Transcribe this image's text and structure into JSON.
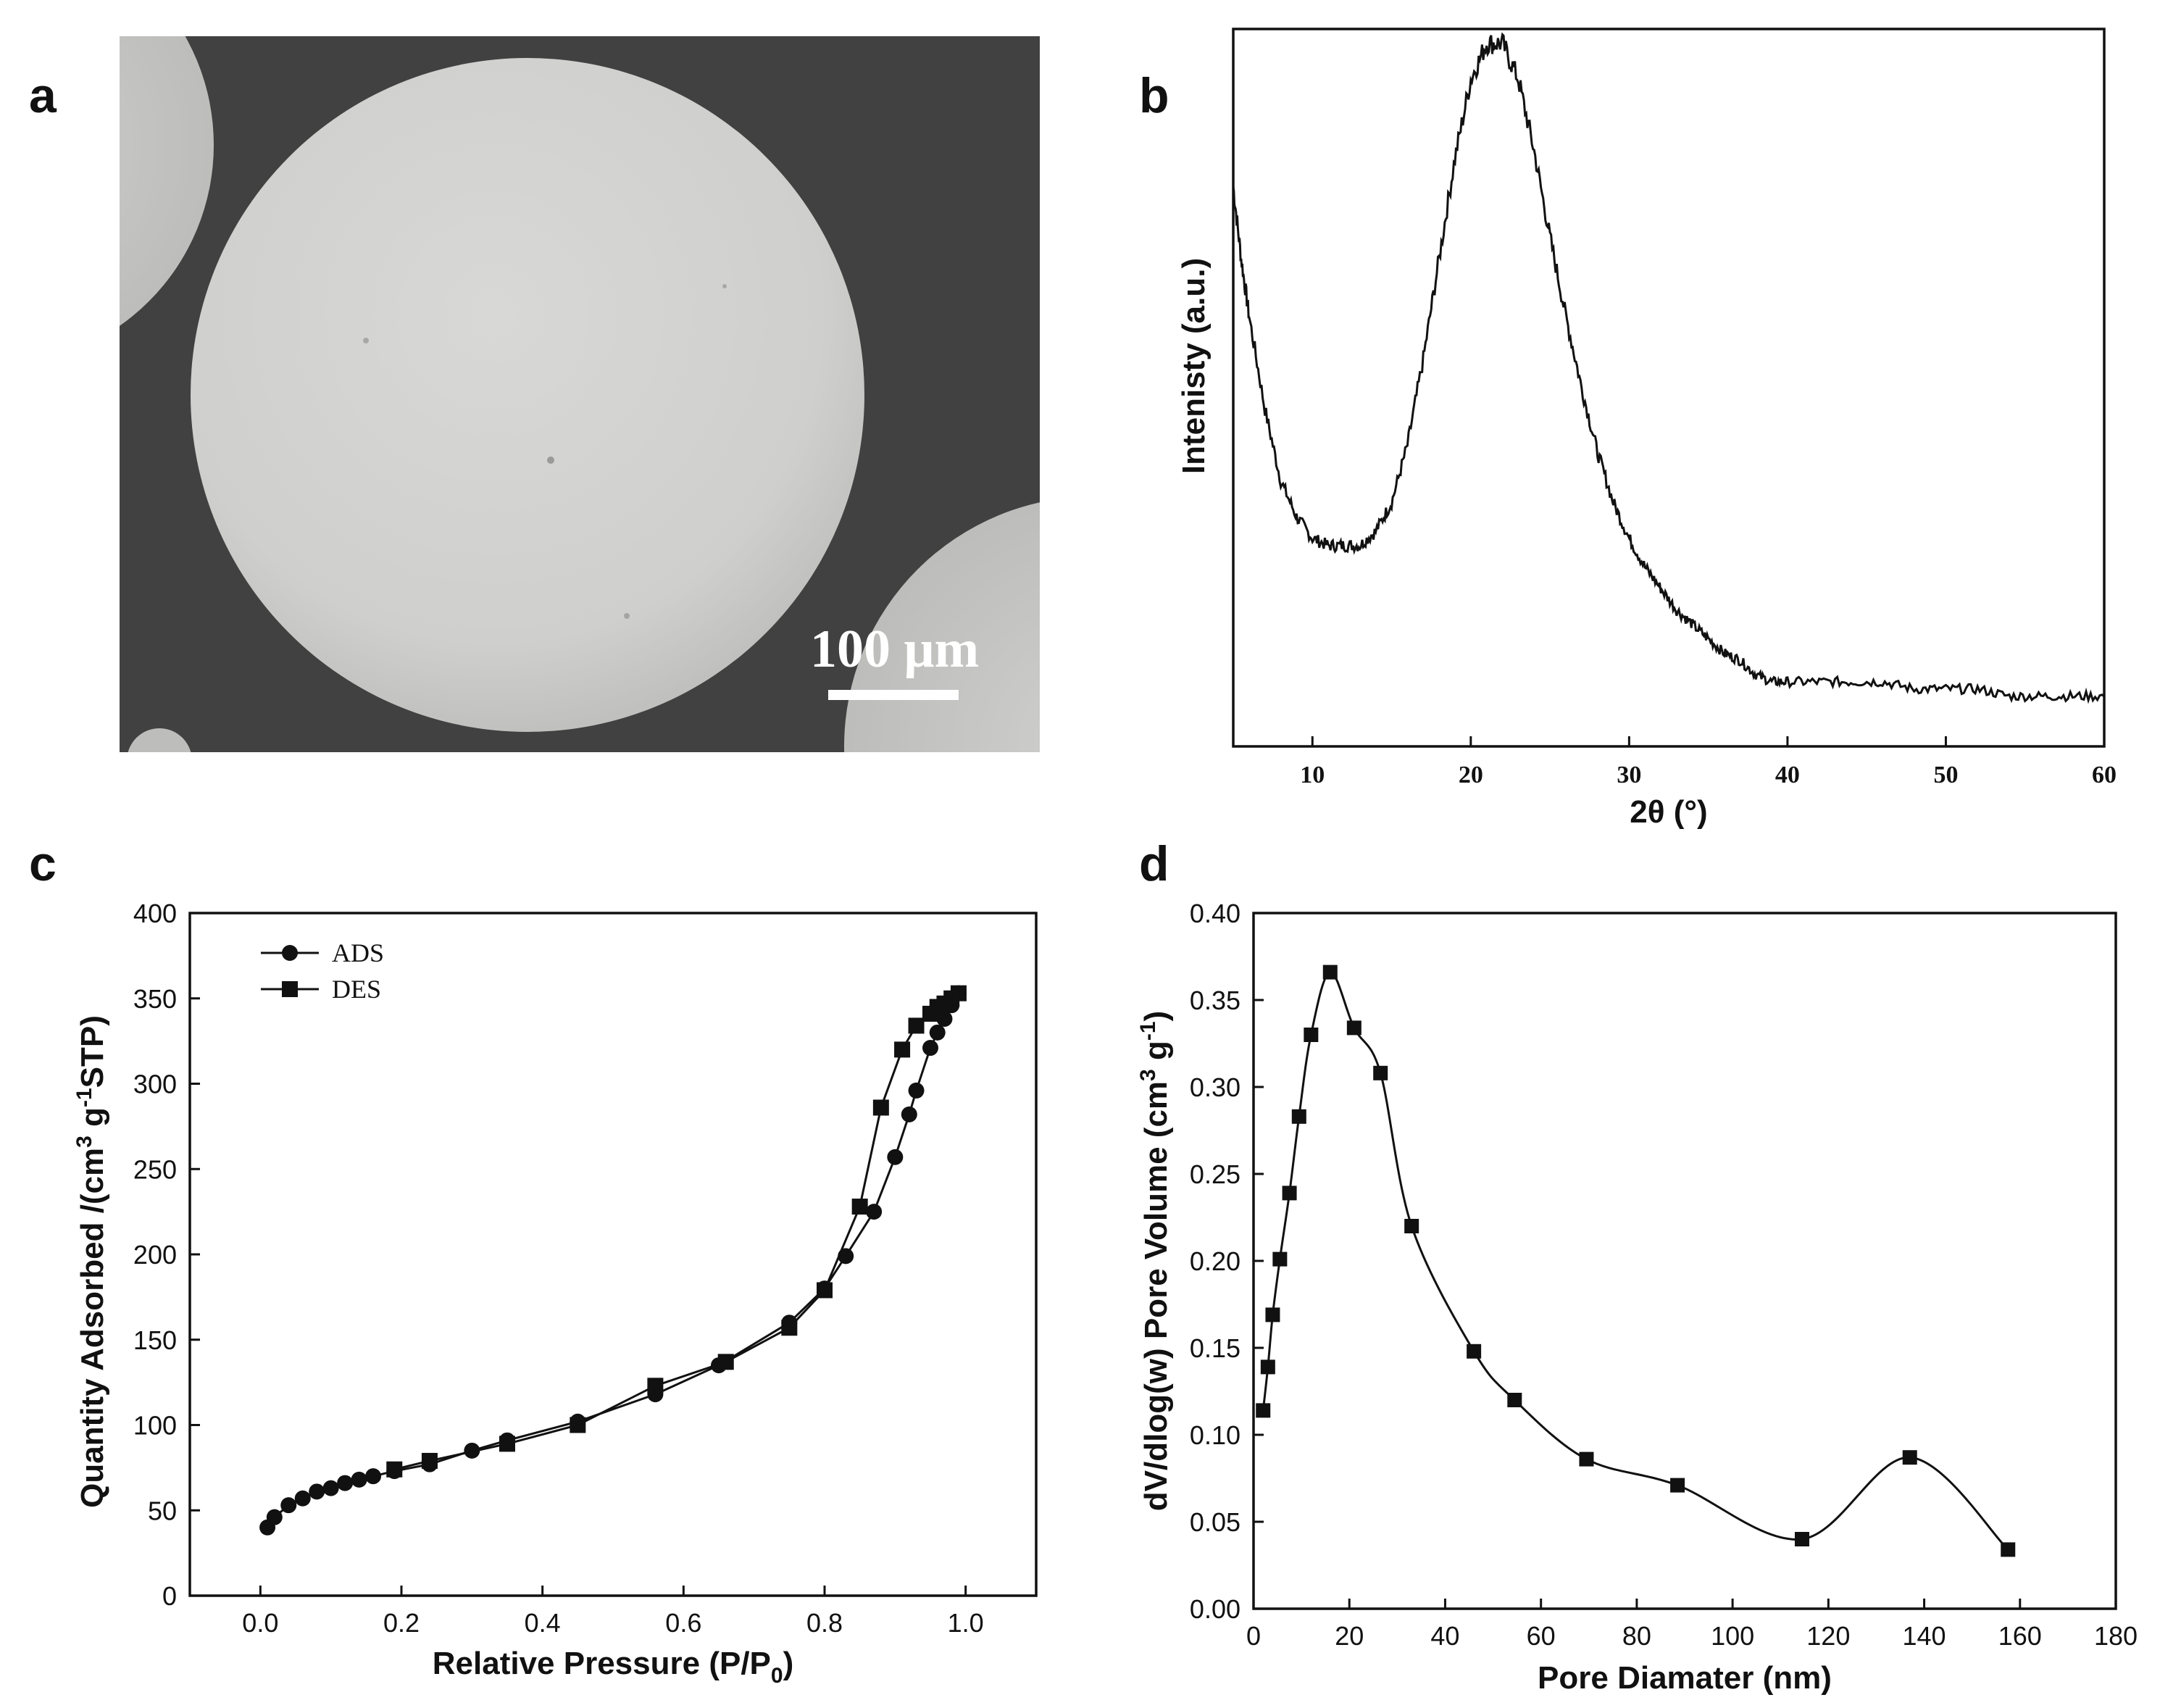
{
  "panel_labels": {
    "a": "a",
    "b": "b",
    "c": "c",
    "d": "d"
  },
  "sem": {
    "scale_bar_label": "100 μm",
    "colors": {
      "background": "#404040",
      "sphere": "#d2d2d0",
      "scale_bar": "#ffffff"
    }
  },
  "chart_data": [
    {
      "id": "b",
      "type": "line",
      "title": "",
      "xlabel": "2θ (°)",
      "ylabel": "Intenisty (a.u.)",
      "xlim": [
        5,
        60
      ],
      "ylim": [
        0,
        1
      ],
      "xticks": [
        10,
        20,
        30,
        40,
        50,
        60
      ],
      "x": [
        5,
        5.5,
        6,
        7,
        8,
        9,
        10,
        11,
        12,
        13,
        14,
        15,
        16,
        17,
        18,
        19,
        20,
        21,
        22,
        23,
        24,
        25,
        26,
        27,
        28,
        29,
        30,
        31,
        32,
        33,
        34,
        35,
        36,
        37,
        38,
        39,
        40,
        42,
        44,
        46,
        48,
        50,
        52,
        54,
        56,
        58,
        60
      ],
      "y": [
        0.78,
        0.68,
        0.6,
        0.47,
        0.37,
        0.32,
        0.29,
        0.28,
        0.28,
        0.28,
        0.3,
        0.34,
        0.42,
        0.54,
        0.68,
        0.82,
        0.93,
        0.98,
        0.98,
        0.93,
        0.83,
        0.71,
        0.6,
        0.5,
        0.41,
        0.34,
        0.29,
        0.25,
        0.22,
        0.19,
        0.17,
        0.15,
        0.13,
        0.12,
        0.1,
        0.09,
        0.09,
        0.09,
        0.09,
        0.09,
        0.08,
        0.08,
        0.08,
        0.07,
        0.07,
        0.07,
        0.07
      ]
    },
    {
      "id": "c",
      "type": "line",
      "title": "",
      "xlabel": "Relative Pressure (P/P0)",
      "ylabel": "Quantity Adsorbed /(cm3 g-1STP)",
      "xlim": [
        -0.1,
        1.1
      ],
      "ylim": [
        0,
        400
      ],
      "xticks": [
        0.0,
        0.2,
        0.4,
        0.6,
        0.8,
        1.0
      ],
      "yticks": [
        0,
        50,
        100,
        150,
        200,
        250,
        300,
        350,
        400
      ],
      "xtick_labels": [
        "0.0",
        "0.2",
        "0.4",
        "0.6",
        "0.8",
        "1.0"
      ],
      "series": [
        {
          "name": "ADS",
          "marker": "circle",
          "x": [
            0.01,
            0.02,
            0.04,
            0.06,
            0.08,
            0.1,
            0.12,
            0.14,
            0.16,
            0.19,
            0.24,
            0.3,
            0.35,
            0.45,
            0.56,
            0.65,
            0.75,
            0.8,
            0.83,
            0.87,
            0.9,
            0.92,
            0.93,
            0.95,
            0.96,
            0.97,
            0.98,
            0.99
          ],
          "y": [
            40,
            46,
            53,
            57,
            61,
            63,
            66,
            68,
            70,
            73,
            77,
            85,
            91,
            102,
            118,
            135,
            160,
            180,
            199,
            225,
            257,
            282,
            296,
            321,
            330,
            338,
            346,
            353
          ]
        },
        {
          "name": "DES",
          "marker": "square",
          "x": [
            0.99,
            0.98,
            0.97,
            0.96,
            0.95,
            0.93,
            0.91,
            0.88,
            0.85,
            0.8,
            0.75,
            0.66,
            0.56,
            0.45,
            0.35,
            0.24,
            0.19
          ],
          "y": [
            353,
            350,
            347,
            345,
            341,
            334,
            320,
            286,
            228,
            179,
            157,
            137,
            123,
            100,
            89,
            79,
            74
          ]
        }
      ],
      "legend": {
        "position": "top-left",
        "entries": [
          "ADS",
          "DES"
        ]
      }
    },
    {
      "id": "d",
      "type": "line",
      "title": "",
      "xlabel": "Pore Diamater (nm)",
      "ylabel": "dV/dlog(w) Pore Volume (cm3 g-1)",
      "xlim": [
        0,
        180
      ],
      "ylim": [
        0,
        0.4
      ],
      "xticks": [
        0,
        20,
        40,
        60,
        80,
        100,
        120,
        140,
        160,
        180
      ],
      "yticks": [
        0,
        0.05,
        0.1,
        0.15,
        0.2,
        0.25,
        0.3,
        0.35,
        0.4
      ],
      "ytick_labels": [
        "0.00",
        "0.05",
        "0.10",
        "0.15",
        "0.20",
        "0.25",
        "0.30",
        "0.35",
        "0.40"
      ],
      "series": [
        {
          "name": "pore volume",
          "marker": "square",
          "x": [
            2,
            3,
            4,
            5.5,
            7.5,
            9.5,
            12,
            16,
            21,
            26.5,
            33,
            46,
            54.5,
            69.5,
            88.5,
            114.5,
            137,
            157.5
          ],
          "y": [
            0.114,
            0.139,
            0.169,
            0.201,
            0.239,
            0.283,
            0.33,
            0.366,
            0.334,
            0.308,
            0.22,
            0.148,
            0.12,
            0.086,
            0.071,
            0.04,
            0.087,
            0.034
          ]
        }
      ]
    }
  ]
}
